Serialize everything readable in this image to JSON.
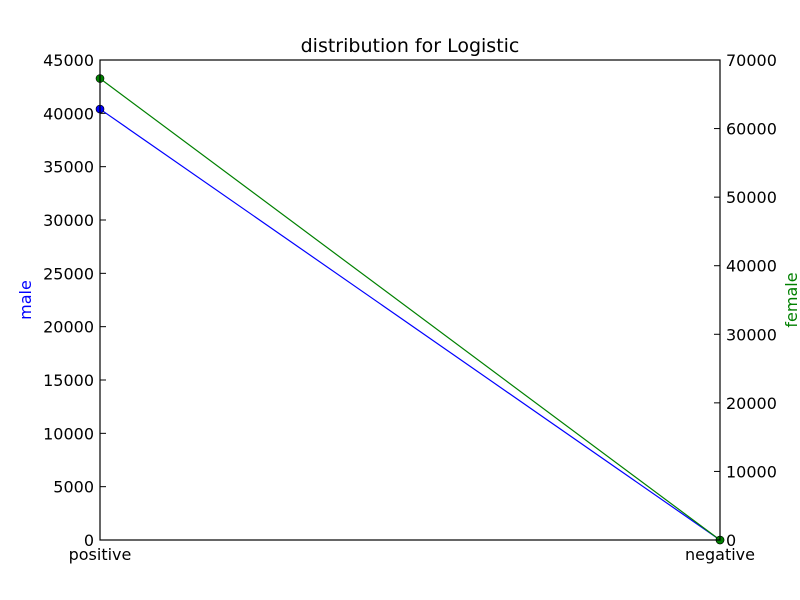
{
  "chart_data": {
    "type": "line",
    "title": "distribution for Logistic",
    "categories": [
      "positive",
      "negative"
    ],
    "y_left": {
      "label": "male",
      "color": "#0000ff",
      "lim": [
        0,
        45000
      ],
      "ticks": [
        0,
        5000,
        10000,
        15000,
        20000,
        25000,
        30000,
        35000,
        40000,
        45000
      ]
    },
    "y_right": {
      "label": "female",
      "color": "#008000",
      "lim": [
        0,
        70000
      ],
      "ticks": [
        0,
        10000,
        20000,
        30000,
        40000,
        50000,
        60000,
        70000
      ]
    },
    "series": [
      {
        "name": "male",
        "axis": "left",
        "color": "#0000ff",
        "values": [
          40400,
          0
        ]
      },
      {
        "name": "female",
        "axis": "right",
        "color": "#008000",
        "values": [
          67300,
          0
        ]
      }
    ],
    "grid": false,
    "legend": "none"
  }
}
